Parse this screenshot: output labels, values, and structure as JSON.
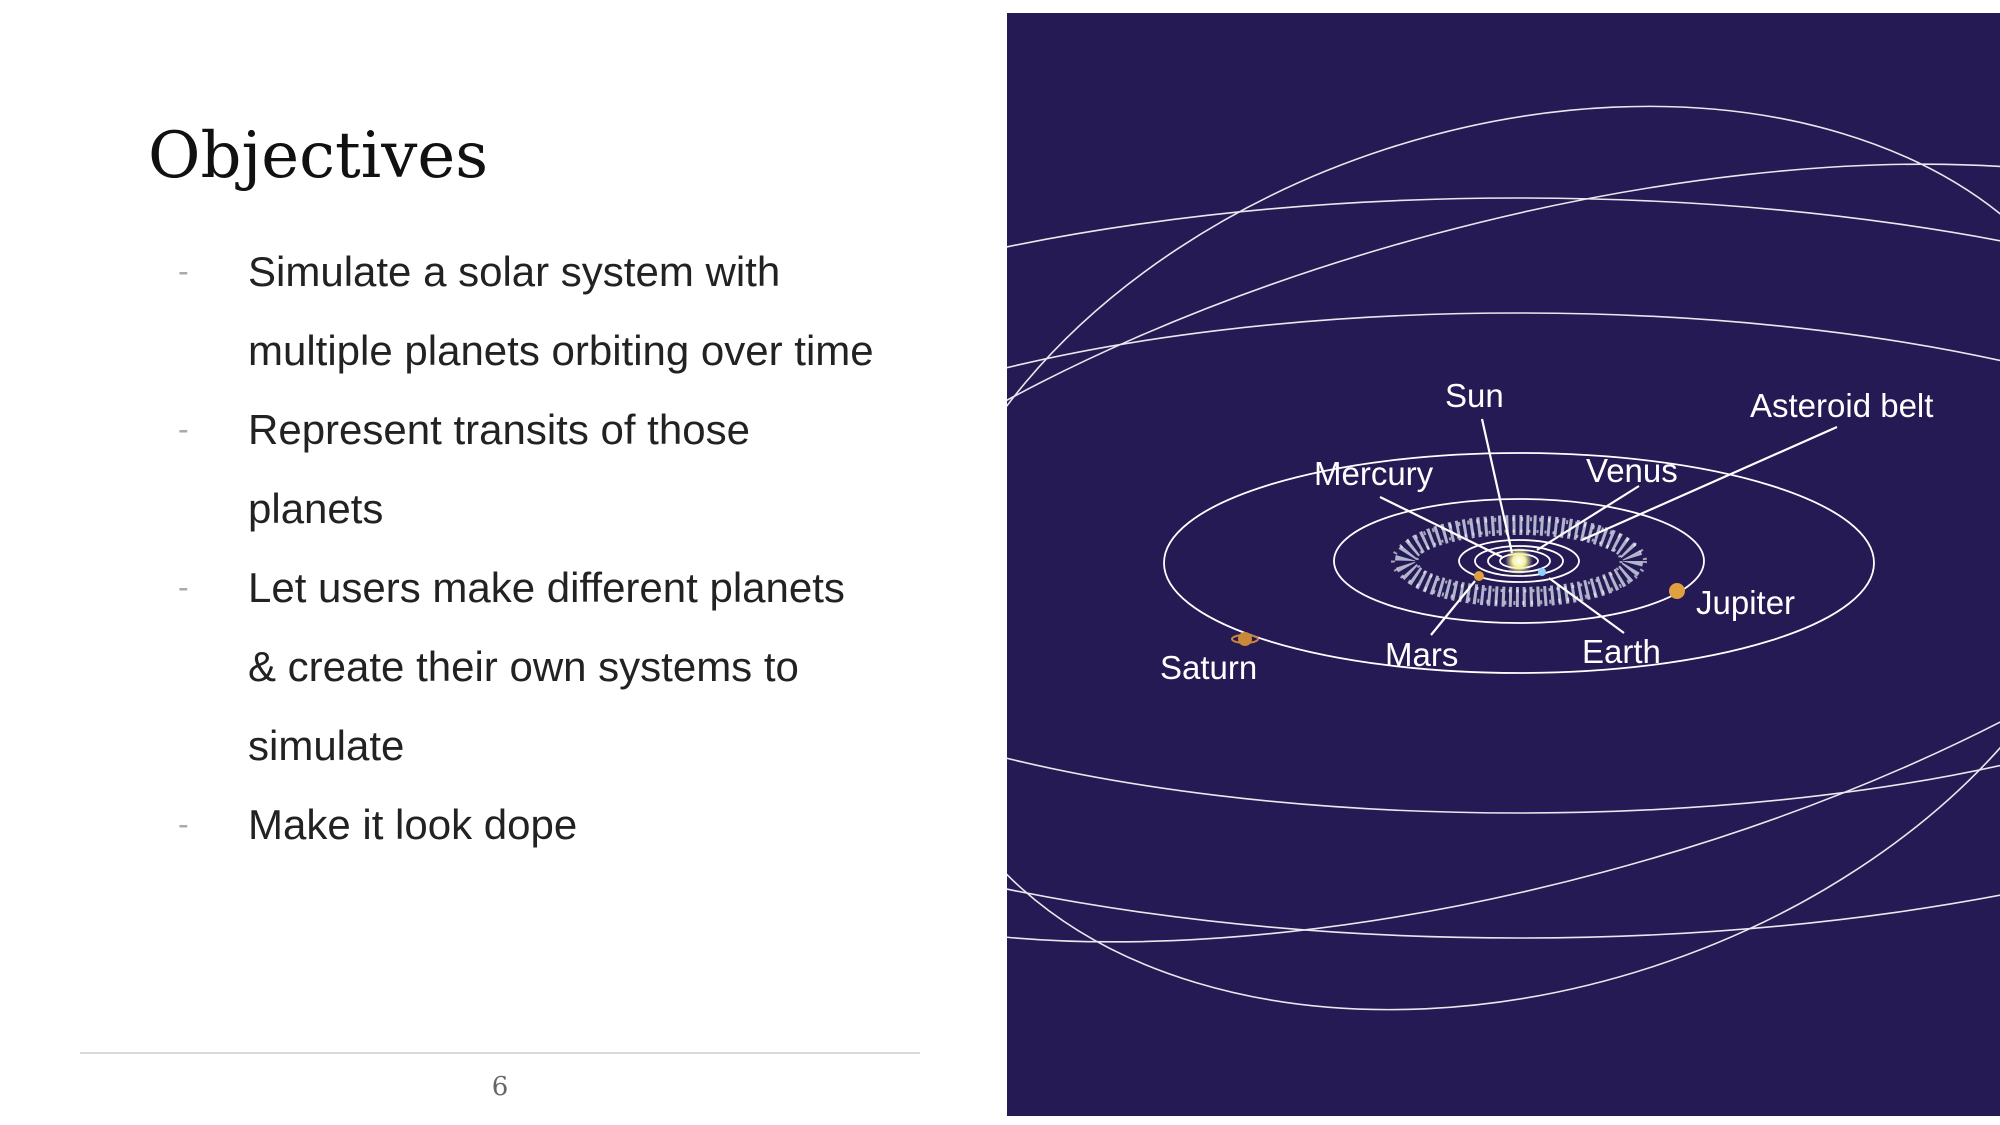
{
  "slide": {
    "title": "Objectives",
    "bullets": [
      "Simulate a solar system with multiple planets orbiting over time",
      "Represent transits of those planets",
      "Let users make different planets & create their own systems to simulate",
      "Make it look dope"
    ],
    "bullet_marker": "-",
    "page_number": "6"
  },
  "diagram": {
    "labels": {
      "sun": "Sun",
      "asteroid_belt": "Asteroid belt",
      "mercury": "Mercury",
      "venus": "Venus",
      "jupiter": "Jupiter",
      "saturn": "Saturn",
      "mars": "Mars",
      "earth": "Earth"
    },
    "colors": {
      "background": "#251a53",
      "orbit": "#ffffff",
      "sun": "#f6f2a0",
      "planet": "#e0a040"
    }
  }
}
